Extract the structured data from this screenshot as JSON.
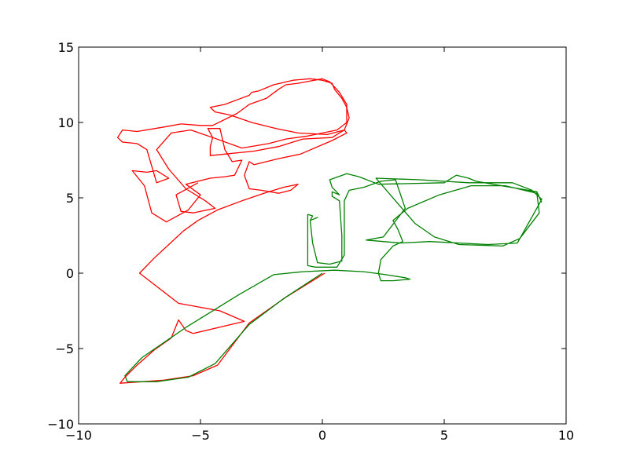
{
  "chart_data": {
    "type": "line",
    "title": "",
    "xlabel": "",
    "ylabel": "",
    "xlim": [
      -10,
      10
    ],
    "ylim": [
      -10,
      15
    ],
    "grid": false,
    "legend": "none",
    "x_ticks": [
      -10,
      -5,
      0,
      5,
      10
    ],
    "x_tick_labels": [
      "−10",
      "−5",
      "0",
      "5",
      "10"
    ],
    "y_ticks": [
      -10,
      -5,
      0,
      5,
      10,
      15
    ],
    "y_tick_labels": [
      "−10",
      "−5",
      "0",
      "5",
      "10",
      "15"
    ],
    "series": [
      {
        "color": "#ff0000",
        "points": [
          [
            0.1,
            0.0
          ],
          [
            -1.5,
            -1.6
          ],
          [
            -3.0,
            -3.3
          ],
          [
            -4.3,
            -6.1
          ],
          [
            -5.3,
            -6.8
          ],
          [
            -6.5,
            -7.1
          ],
          [
            -8.3,
            -7.3
          ],
          [
            -8.1,
            -6.9
          ],
          [
            -7.6,
            -6.1
          ],
          [
            -6.9,
            -5.1
          ],
          [
            -6.2,
            -4.3
          ],
          [
            -5.9,
            -3.1
          ],
          [
            -5.6,
            -3.8
          ],
          [
            -5.3,
            -4.0
          ],
          [
            -3.2,
            -3.2
          ],
          [
            -4.2,
            -2.5
          ],
          [
            -5.9,
            -2.0
          ],
          [
            -7.5,
            0.0
          ],
          [
            -6.9,
            1.0
          ],
          [
            -6.3,
            1.9
          ],
          [
            -5.7,
            2.8
          ],
          [
            -5.1,
            3.5
          ],
          [
            -4.3,
            4.2
          ],
          [
            -3.3,
            4.8
          ],
          [
            -2.4,
            5.3
          ],
          [
            -1.6,
            5.7
          ],
          [
            -1.0,
            5.9
          ],
          [
            -1.3,
            5.5
          ],
          [
            -1.8,
            5.3
          ],
          [
            -2.5,
            5.5
          ],
          [
            -3.0,
            5.6
          ],
          [
            -3.2,
            6.5
          ],
          [
            -3.0,
            7.4
          ],
          [
            -2.8,
            7.2
          ],
          [
            -1.8,
            7.6
          ],
          [
            -0.9,
            7.9
          ],
          [
            0.4,
            8.8
          ],
          [
            1.0,
            9.3
          ],
          [
            0.9,
            9.5
          ],
          [
            1.1,
            10.3
          ],
          [
            1.0,
            11.0
          ],
          [
            0.8,
            11.6
          ],
          [
            0.5,
            12.2
          ],
          [
            0.4,
            12.6
          ],
          [
            0.0,
            12.8
          ],
          [
            -0.5,
            12.9
          ],
          [
            -1.2,
            12.8
          ],
          [
            -2.0,
            12.5
          ],
          [
            -2.6,
            12.1
          ],
          [
            -2.9,
            12.0
          ],
          [
            -3.0,
            11.8
          ],
          [
            -3.5,
            11.5
          ],
          [
            -4.0,
            11.2
          ],
          [
            -4.6,
            11.0
          ],
          [
            -4.4,
            10.7
          ],
          [
            -3.8,
            10.5
          ],
          [
            -2.9,
            10.0
          ],
          [
            -1.9,
            9.6
          ],
          [
            -1.0,
            9.3
          ],
          [
            0.2,
            9.2
          ],
          [
            0.9,
            9.5
          ],
          [
            0.4,
            9.0
          ],
          [
            -0.8,
            8.9
          ],
          [
            -1.8,
            8.4
          ],
          [
            -2.8,
            8.1
          ],
          [
            -4.6,
            7.8
          ],
          [
            -4.6,
            8.4
          ],
          [
            -4.5,
            9.0
          ],
          [
            -4.7,
            9.6
          ],
          [
            -4.2,
            9.6
          ],
          [
            -4.0,
            8.2
          ],
          [
            -3.7,
            7.4
          ],
          [
            -3.3,
            7.5
          ],
          [
            -3.6,
            6.5
          ],
          [
            -4.0,
            6.4
          ],
          [
            -4.6,
            6.3
          ],
          [
            -5.6,
            5.9
          ],
          [
            -5.0,
            5.2
          ],
          [
            -5.5,
            4.2
          ],
          [
            -6.4,
            3.4
          ],
          [
            -7.0,
            4.0
          ],
          [
            -7.3,
            5.8
          ],
          [
            -7.8,
            6.8
          ],
          [
            -7.2,
            6.7
          ],
          [
            -6.8,
            6.8
          ],
          [
            -6.3,
            6.3
          ],
          [
            -6.8,
            6.0
          ],
          [
            -7.2,
            8.2
          ],
          [
            -7.6,
            8.6
          ],
          [
            -8.2,
            8.7
          ],
          [
            -8.4,
            9.0
          ],
          [
            -8.2,
            9.5
          ],
          [
            -7.6,
            9.4
          ],
          [
            -6.5,
            9.7
          ],
          [
            -5.8,
            9.9
          ],
          [
            -5.0,
            9.8
          ],
          [
            -4.5,
            9.8
          ],
          [
            -3.5,
            10.6
          ],
          [
            -3.0,
            11.2
          ],
          [
            -2.3,
            11.6
          ],
          [
            -1.8,
            12.2
          ],
          [
            -1.5,
            12.5
          ],
          [
            -1.0,
            12.6
          ],
          [
            0.0,
            12.9
          ],
          [
            0.3,
            12.7
          ],
          [
            0.7,
            12.0
          ],
          [
            1.0,
            11.2
          ],
          [
            1.0,
            10.0
          ],
          [
            0.6,
            9.5
          ],
          [
            -0.6,
            9.1
          ],
          [
            -1.5,
            8.9
          ],
          [
            -2.2,
            8.6
          ],
          [
            -3.3,
            8.3
          ],
          [
            -4.5,
            9.0
          ],
          [
            -5.4,
            9.5
          ],
          [
            -6.2,
            9.3
          ],
          [
            -6.8,
            8.2
          ],
          [
            -6.3,
            6.9
          ],
          [
            -5.6,
            5.6
          ],
          [
            -4.8,
            4.8
          ],
          [
            -4.4,
            4.3
          ],
          [
            -5.3,
            4.0
          ],
          [
            -5.8,
            4.1
          ],
          [
            -6.0,
            5.2
          ],
          [
            -5.1,
            6.0
          ]
        ]
      },
      {
        "color": "#008000",
        "points": [
          [
            0.0,
            0.0
          ],
          [
            -1.6,
            -1.7
          ],
          [
            -3.0,
            -3.4
          ],
          [
            -4.4,
            -6.0
          ],
          [
            -5.5,
            -6.9
          ],
          [
            -6.8,
            -7.2
          ],
          [
            -8.0,
            -7.2
          ],
          [
            -8.1,
            -6.8
          ],
          [
            -7.4,
            -5.6
          ],
          [
            -6.5,
            -4.6
          ],
          [
            -5.6,
            -3.6
          ],
          [
            -4.6,
            -2.6
          ],
          [
            -3.4,
            -1.4
          ],
          [
            -2.0,
            -0.1
          ],
          [
            -0.8,
            0.1
          ],
          [
            0.5,
            0.2
          ],
          [
            1.7,
            0.1
          ],
          [
            2.6,
            -0.1
          ],
          [
            3.4,
            -0.3
          ],
          [
            3.6,
            -0.4
          ],
          [
            2.9,
            -0.5
          ],
          [
            2.4,
            -0.5
          ],
          [
            2.3,
            0.0
          ],
          [
            2.4,
            0.9
          ],
          [
            2.9,
            1.8
          ],
          [
            3.3,
            2.1
          ],
          [
            3.1,
            2.9
          ],
          [
            2.9,
            3.5
          ],
          [
            3.5,
            4.3
          ],
          [
            4.8,
            5.2
          ],
          [
            6.1,
            5.8
          ],
          [
            7.5,
            5.8
          ],
          [
            8.8,
            5.3
          ],
          [
            8.9,
            4.0
          ],
          [
            8.1,
            2.3
          ],
          [
            7.4,
            1.8
          ],
          [
            5.6,
            1.9
          ],
          [
            4.6,
            2.4
          ],
          [
            3.8,
            3.3
          ],
          [
            3.0,
            4.8
          ],
          [
            2.2,
            6.3
          ],
          [
            4.0,
            6.2
          ],
          [
            6.0,
            6.0
          ],
          [
            7.8,
            6.0
          ],
          [
            8.6,
            5.5
          ],
          [
            9.0,
            4.9
          ],
          [
            8.9,
            4.6
          ],
          [
            8.0,
            2.0
          ],
          [
            6.8,
            1.9
          ],
          [
            4.4,
            2.1
          ],
          [
            3.2,
            2.0
          ],
          [
            1.8,
            2.2
          ],
          [
            2.5,
            2.4
          ],
          [
            3.4,
            4.3
          ],
          [
            3.0,
            6.2
          ],
          [
            2.4,
            6.1
          ],
          [
            1.7,
            5.7
          ],
          [
            1.1,
            5.5
          ],
          [
            0.9,
            4.8
          ],
          [
            0.9,
            3.5
          ],
          [
            0.9,
            1.2
          ],
          [
            0.6,
            0.4
          ],
          [
            -0.3,
            0.4
          ],
          [
            -0.6,
            0.5
          ],
          [
            -0.6,
            1.2
          ],
          [
            -0.6,
            2.9
          ],
          [
            -0.6,
            3.9
          ],
          [
            -0.4,
            3.8
          ],
          [
            -0.5,
            3.5
          ],
          [
            -0.2,
            3.7
          ],
          [
            -0.5,
            3.5
          ],
          [
            -0.4,
            2.0
          ],
          [
            -0.2,
            0.7
          ],
          [
            0.3,
            0.6
          ],
          [
            0.8,
            0.8
          ],
          [
            0.8,
            2.5
          ],
          [
            0.7,
            4.8
          ],
          [
            0.4,
            5.1
          ],
          [
            0.4,
            5.4
          ],
          [
            0.7,
            5.2
          ],
          [
            0.4,
            5.7
          ],
          [
            0.3,
            6.2
          ],
          [
            1.0,
            6.6
          ],
          [
            1.5,
            6.4
          ],
          [
            2.3,
            5.9
          ],
          [
            5.0,
            6.0
          ],
          [
            5.5,
            6.5
          ],
          [
            6.0,
            6.3
          ],
          [
            6.3,
            6.1
          ],
          [
            7.0,
            5.9
          ],
          [
            8.8,
            5.4
          ],
          [
            9.0,
            4.7
          ]
        ]
      }
    ]
  }
}
